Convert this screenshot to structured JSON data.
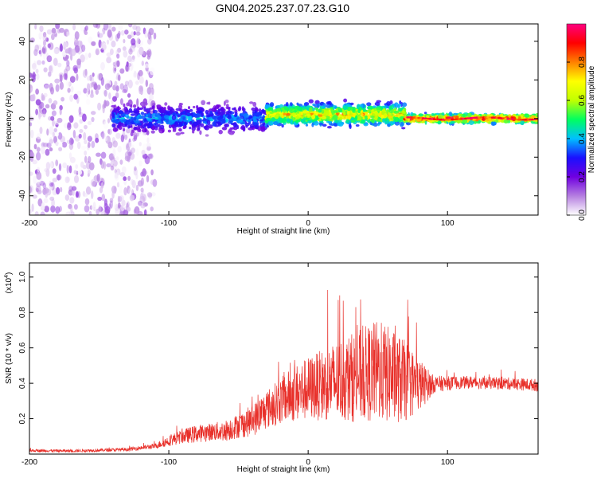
{
  "figure_title": "GN04.2025.237.07.23.G10",
  "chart_data": [
    {
      "type": "heatmap",
      "title": "GN04.2025.237.07.23.G10",
      "xlabel": "Height of straight line (km)",
      "ylabel": "Frequency (Hz)",
      "xlim": [
        -200,
        165
      ],
      "ylim": [
        -50,
        49
      ],
      "xticks": [
        -200,
        -100,
        0,
        100
      ],
      "yticks": [
        -40,
        -20,
        0,
        20,
        40
      ],
      "colorbar": {
        "label": "Normalized spectral amplitude",
        "range": [
          0.0,
          1.0
        ],
        "ticks": [
          0.0,
          0.2,
          0.4,
          0.6,
          0.8
        ],
        "tick_labels": [
          "0.0",
          "0.2",
          "0.4",
          "0.6",
          "0.8"
        ],
        "colormap": [
          "#ffffff",
          "#b57fe0",
          "#7000e0",
          "#1a10ff",
          "#00c0ff",
          "#00ff60",
          "#c0ff00",
          "#ffff00",
          "#ff8000",
          "#ff0000",
          "#ff0080"
        ]
      },
      "description_regions": [
        {
          "x_range": [
            -200,
            -110
          ],
          "freq_range": [
            -50,
            49
          ],
          "amplitude": [
            0.0,
            0.15
          ],
          "pattern": "broadband speckle"
        },
        {
          "x_range": [
            -140,
            -30
          ],
          "center_freq": 0,
          "halfwidth_hz": 10,
          "amplitude": [
            0.1,
            0.45
          ]
        },
        {
          "x_range": [
            -30,
            70
          ],
          "center_freq": 2,
          "halfwidth_hz": 8,
          "amplitude": [
            0.2,
            0.85
          ]
        },
        {
          "x_range": [
            70,
            165
          ],
          "center_freq": 0,
          "halfwidth_hz": 3,
          "amplitude": [
            0.3,
            1.0
          ]
        }
      ]
    },
    {
      "type": "line",
      "xlabel": "Height of straight line (km)",
      "ylabel": "SNR (10 * v/v)",
      "ylabel_multiplier": "(x10",
      "ylabel_exponent": "4",
      "ylabel_multiplier_close": ")",
      "color": "#e8302a",
      "xlim": [
        -200,
        165
      ],
      "ylim": [
        0,
        10800
      ],
      "xticks": [
        -200,
        -100,
        0,
        100
      ],
      "yticks": [
        2000,
        4000,
        6000,
        8000,
        10000
      ],
      "ytick_labels": [
        "0.2",
        "0.4",
        "0.6",
        "0.8",
        "1.0"
      ],
      "series": [
        {
          "name": "SNR",
          "x": [
            -200,
            -170,
            -150,
            -130,
            -110,
            -100,
            -90,
            -80,
            -70,
            -60,
            -50,
            -40,
            -30,
            -20,
            -10,
            0,
            10,
            20,
            30,
            40,
            50,
            60,
            70,
            80,
            90,
            100,
            110,
            120,
            130,
            140,
            150,
            165
          ],
          "values": [
            200,
            180,
            220,
            260,
            450,
            750,
            1000,
            1150,
            1250,
            1300,
            1600,
            1900,
            2500,
            3000,
            3400,
            3700,
            3900,
            4100,
            4300,
            4500,
            4700,
            4400,
            4100,
            3900,
            3950,
            4000,
            4050,
            4050,
            4000,
            4000,
            3950,
            3900
          ],
          "spread": [
            80,
            80,
            90,
            100,
            150,
            300,
            400,
            500,
            500,
            600,
            700,
            900,
            1100,
            1300,
            1600,
            1800,
            2000,
            2300,
            2500,
            2700,
            2900,
            2700,
            2300,
            1500,
            500,
            400,
            350,
            350,
            350,
            350,
            350,
            350
          ]
        }
      ]
    }
  ]
}
